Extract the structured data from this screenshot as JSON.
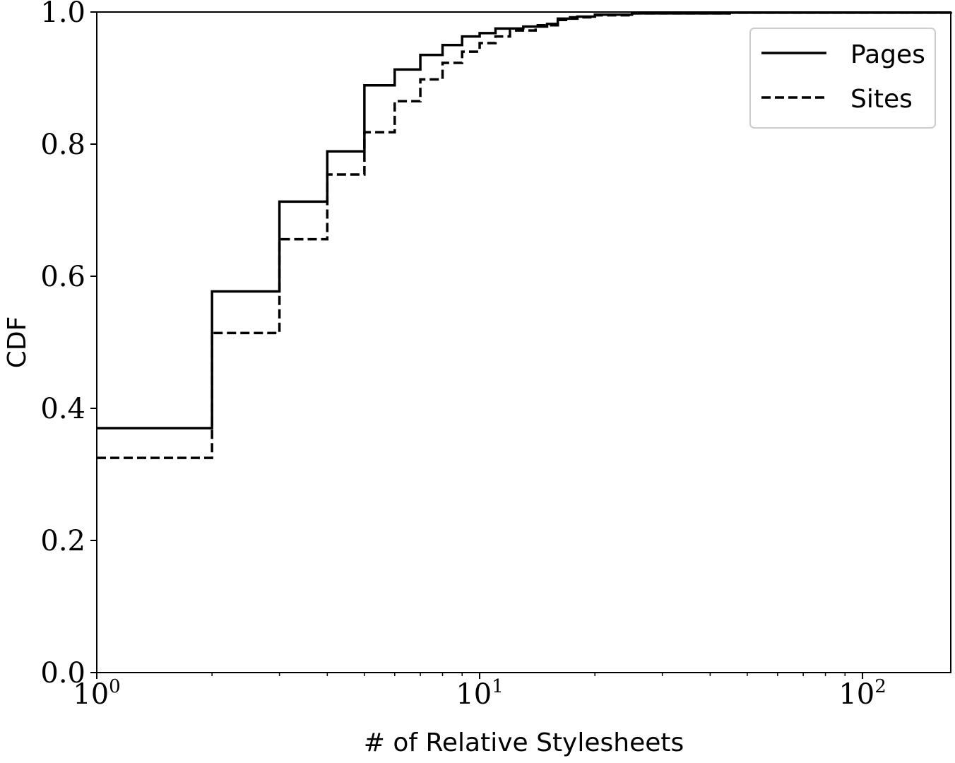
{
  "chart_data": {
    "type": "line",
    "xscale": "log",
    "xlim": [
      1,
      170
    ],
    "ylim": [
      0.0,
      1.0
    ],
    "xlabel": "# of Relative Stylesheets",
    "ylabel": "CDF",
    "legend_placement": "top-right",
    "grid": false,
    "x_ticks": [
      {
        "value": 1,
        "base": "10",
        "exp": "0"
      },
      {
        "value": 10,
        "base": "10",
        "exp": "1"
      },
      {
        "value": 100,
        "base": "10",
        "exp": "2"
      }
    ],
    "y_ticks": [
      "0.0",
      "0.2",
      "0.4",
      "0.6",
      "0.8",
      "1.0"
    ],
    "series": [
      {
        "name": "Pages",
        "style": "solid",
        "color": "#000000",
        "points": [
          [
            1,
            0.37
          ],
          [
            2,
            0.577
          ],
          [
            3,
            0.713
          ],
          [
            4,
            0.789
          ],
          [
            5,
            0.889
          ],
          [
            6,
            0.913
          ],
          [
            7,
            0.935
          ],
          [
            8,
            0.95
          ],
          [
            9,
            0.963
          ],
          [
            10,
            0.968
          ],
          [
            11,
            0.975
          ],
          [
            13,
            0.978
          ],
          [
            15,
            0.982
          ],
          [
            16,
            0.99
          ],
          [
            18,
            0.993
          ],
          [
            20,
            0.996
          ],
          [
            25,
            0.998
          ],
          [
            45,
            0.999
          ],
          [
            170,
            1.0
          ]
        ]
      },
      {
        "name": "Sites",
        "style": "dashed",
        "color": "#000000",
        "points": [
          [
            1,
            0.325
          ],
          [
            2,
            0.514
          ],
          [
            3,
            0.656
          ],
          [
            4,
            0.754
          ],
          [
            5,
            0.818
          ],
          [
            6,
            0.865
          ],
          [
            7,
            0.898
          ],
          [
            8,
            0.923
          ],
          [
            9,
            0.94
          ],
          [
            10,
            0.953
          ],
          [
            11,
            0.963
          ],
          [
            12,
            0.972
          ],
          [
            14,
            0.98
          ],
          [
            16,
            0.988
          ],
          [
            17,
            0.992
          ],
          [
            20,
            0.995
          ],
          [
            25,
            0.998
          ],
          [
            45,
            0.999
          ],
          [
            170,
            1.0
          ]
        ]
      }
    ]
  }
}
